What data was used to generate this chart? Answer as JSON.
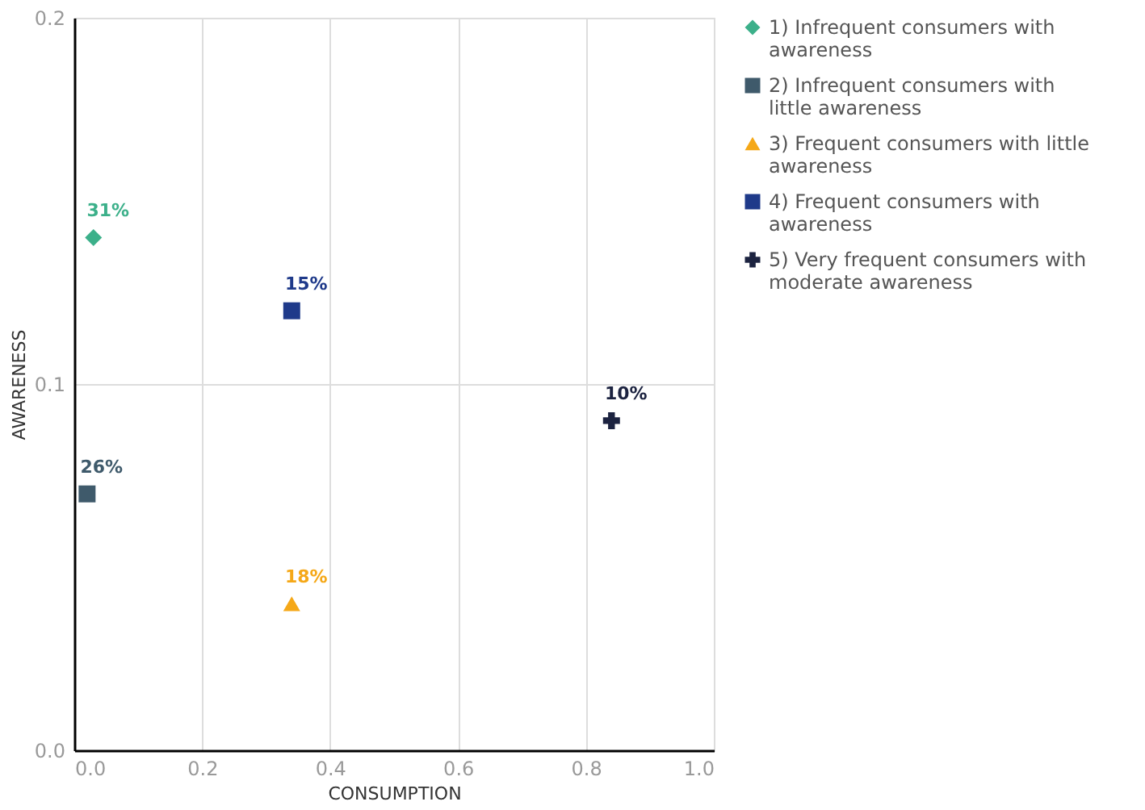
{
  "chart_data": {
    "type": "scatter",
    "xlabel": "CONSUMPTION",
    "ylabel": "AWARENESS",
    "xlim": [
      0,
      1
    ],
    "xticks": [
      {
        "value": 0,
        "label": "0.0"
      },
      0.2,
      0.4,
      0.6,
      0.8,
      {
        "value": 1,
        "label": "1.0"
      }
    ],
    "ylim": [
      0,
      0.2
    ],
    "yticks": [
      {
        "value": 0,
        "label": "0.0"
      },
      0.1,
      0.2
    ],
    "grid": true,
    "legend": "right",
    "annotations": [
      {
        "text": "31%",
        "x": 0.03,
        "y": 0.14
      },
      {
        "text": "26%",
        "x": 0.02,
        "y": 0.07
      },
      {
        "text": "18%",
        "x": 0.34,
        "y": 0.04
      },
      {
        "text": "15%",
        "x": 0.34,
        "y": 0.12
      },
      {
        "text": "10%",
        "x": 0.84,
        "y": 0.09
      }
    ],
    "series": [
      {
        "name": "1) Infrequent consumers with awareness",
        "color": "#3cb08a",
        "marker": "diamond",
        "x": [
          0.03
        ],
        "values": [
          0.14
        ]
      },
      {
        "name": "2) Infrequent consumers with little awareness",
        "color": "#3f5a6b",
        "marker": "square",
        "x": [
          0.02
        ],
        "values": [
          0.07
        ]
      },
      {
        "name": "3) Frequent consumers with little awareness",
        "color": "#f5a818",
        "marker": "triangle",
        "x": [
          0.34
        ],
        "values": [
          0.04
        ]
      },
      {
        "name": "4) Frequent consumers with awareness",
        "color": "#1f3a8a",
        "marker": "square",
        "x": [
          0.34
        ],
        "values": [
          0.12
        ]
      },
      {
        "name": "5) Very frequent consumers with moderate awareness",
        "color": "#1c2340",
        "marker": "cross",
        "x": [
          0.84
        ],
        "values": [
          0.09
        ]
      }
    ]
  }
}
